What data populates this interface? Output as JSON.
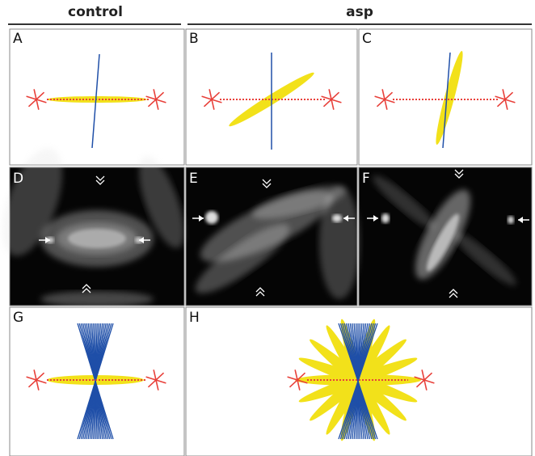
{
  "header": {
    "left": "control",
    "right": "asp"
  },
  "panels": [
    {
      "label": "A"
    },
    {
      "label": "B"
    },
    {
      "label": "C"
    },
    {
      "label": "D"
    },
    {
      "label": "E"
    },
    {
      "label": "F"
    },
    {
      "label": "G"
    },
    {
      "label": "H"
    }
  ]
}
